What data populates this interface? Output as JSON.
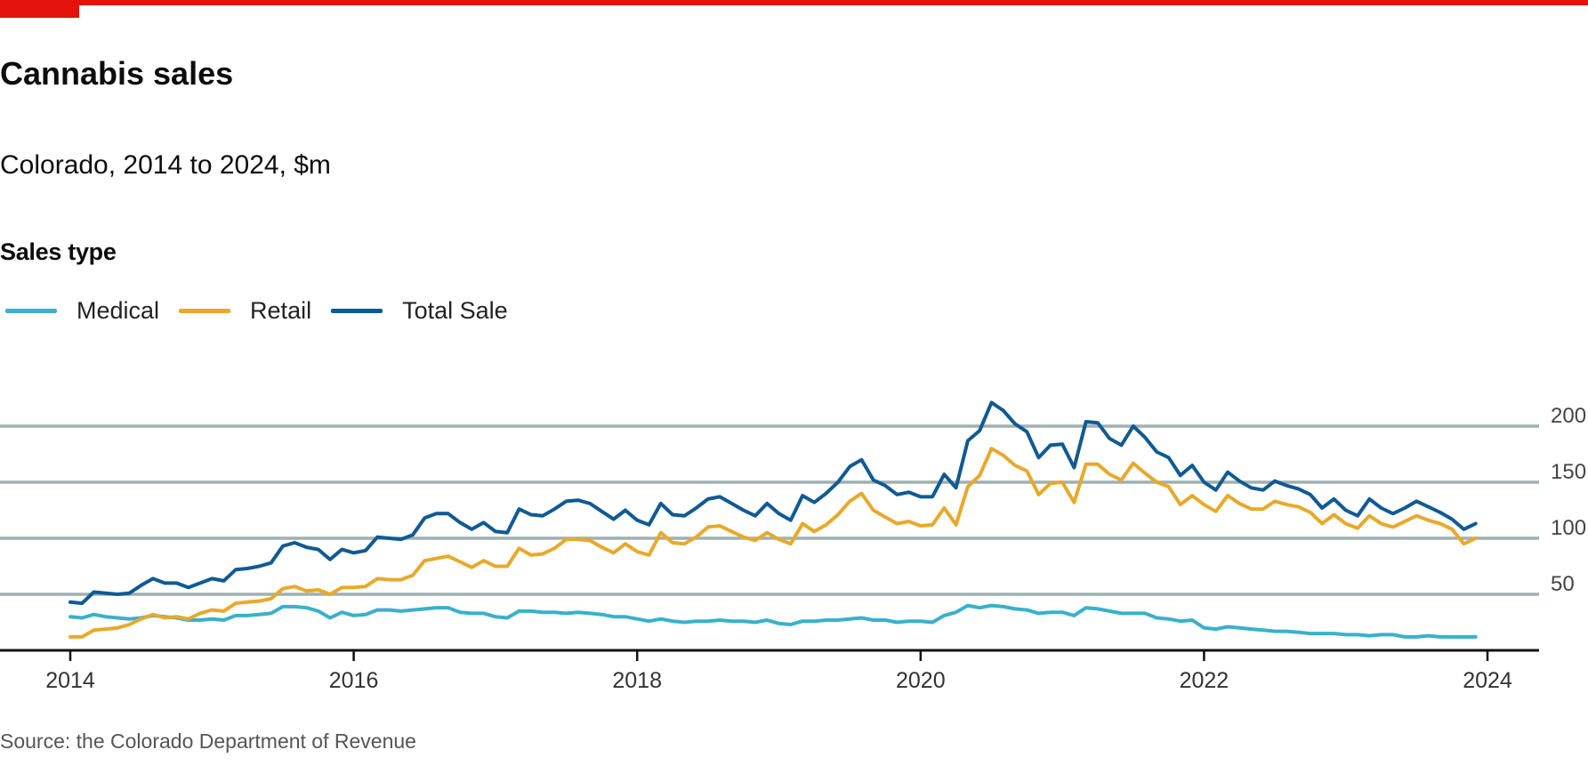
{
  "header": {
    "title": "Cannabis sales",
    "subtitle": "Colorado, 2014 to 2024, $m"
  },
  "legend": {
    "title": "Sales type",
    "items": [
      {
        "label": "Medical",
        "color": "#3ab0cc"
      },
      {
        "label": "Retail",
        "color": "#e8a92a"
      },
      {
        "label": "Total Sale",
        "color": "#0f5a94"
      }
    ]
  },
  "source": "Source: the Colorado Department of Revenue",
  "colors": {
    "brand_red": "#e3120b",
    "grid": "#9fb0b0",
    "axis": "#111111"
  },
  "chart_data": {
    "type": "line",
    "title": "Cannabis sales",
    "subtitle": "Colorado, 2014 to 2024, $m",
    "x_type": "monthly dates",
    "x_start": "2014-01",
    "x_end": "2023-12",
    "xlim": [
      "2014-01",
      "2024-01"
    ],
    "x_ticks": [
      "2014",
      "2016",
      "2018",
      "2020",
      "2022",
      "2024"
    ],
    "ylim": [
      0,
      210
    ],
    "y_ticks": [
      50,
      100,
      150,
      200
    ],
    "y_axis_side": "right",
    "grid": "horizontal",
    "legend_position": "top-left",
    "series": [
      {
        "name": "Medical",
        "color": "#3ab0cc",
        "values": [
          30,
          29,
          32,
          30,
          29,
          28,
          29,
          31,
          30,
          29,
          27,
          27,
          28,
          27,
          31,
          31,
          32,
          33,
          39,
          39,
          38,
          35,
          29,
          34,
          31,
          32,
          36,
          36,
          35,
          36,
          37,
          38,
          38,
          34,
          33,
          33,
          30,
          29,
          35,
          35,
          34,
          34,
          33,
          34,
          33,
          32,
          30,
          30,
          28,
          26,
          28,
          26,
          25,
          26,
          26,
          27,
          26,
          26,
          25,
          27,
          24,
          23,
          26,
          26,
          27,
          27,
          28,
          29,
          27,
          27,
          25,
          26,
          26,
          25,
          31,
          34,
          40,
          38,
          40,
          39,
          37,
          36,
          33,
          34,
          34,
          31,
          38,
          37,
          35,
          33,
          33,
          33,
          29,
          28,
          26,
          27,
          20,
          19,
          21,
          20,
          19,
          18,
          17,
          17,
          16,
          15,
          15,
          15,
          14,
          14,
          13,
          14,
          14,
          12,
          12,
          13,
          12,
          12,
          12,
          12
        ]
      },
      {
        "name": "Retail",
        "color": "#e8a92a",
        "values": [
          12,
          12,
          18,
          19,
          20,
          23,
          28,
          32,
          29,
          30,
          28,
          33,
          36,
          35,
          42,
          43,
          44,
          46,
          55,
          57,
          53,
          54,
          50,
          56,
          56,
          57,
          64,
          63,
          63,
          67,
          80,
          82,
          84,
          79,
          74,
          80,
          75,
          75,
          91,
          85,
          86,
          91,
          99,
          99,
          98,
          92,
          87,
          95,
          88,
          85,
          105,
          96,
          95,
          101,
          110,
          111,
          106,
          101,
          98,
          105,
          99,
          95,
          113,
          106,
          112,
          121,
          133,
          140,
          125,
          119,
          113,
          115,
          111,
          112,
          127,
          112,
          146,
          156,
          180,
          174,
          165,
          160,
          139,
          149,
          150,
          132,
          166,
          166,
          157,
          152,
          167,
          158,
          150,
          146,
          130,
          138,
          130,
          124,
          138,
          131,
          126,
          126,
          133,
          130,
          128,
          123,
          113,
          121,
          113,
          109,
          120,
          113,
          110,
          115,
          120,
          116,
          113,
          108,
          95,
          100
        ]
      },
      {
        "name": "Total Sale",
        "color": "#0f5a94",
        "values": [
          43,
          42,
          52,
          51,
          50,
          51,
          58,
          64,
          60,
          60,
          56,
          60,
          64,
          62,
          72,
          73,
          75,
          78,
          93,
          96,
          92,
          90,
          81,
          90,
          87,
          89,
          101,
          100,
          99,
          103,
          118,
          122,
          122,
          114,
          108,
          114,
          106,
          105,
          126,
          121,
          120,
          126,
          133,
          134,
          131,
          124,
          117,
          125,
          116,
          112,
          131,
          121,
          120,
          127,
          135,
          137,
          131,
          125,
          120,
          131,
          122,
          116,
          138,
          132,
          140,
          150,
          164,
          170,
          152,
          147,
          139,
          141,
          137,
          137,
          157,
          145,
          187,
          196,
          221,
          214,
          202,
          195,
          172,
          183,
          184,
          163,
          204,
          203,
          189,
          183,
          200,
          190,
          177,
          172,
          156,
          165,
          150,
          143,
          159,
          151,
          145,
          143,
          151,
          147,
          144,
          139,
          127,
          135,
          125,
          120,
          135,
          127,
          122,
          127,
          133,
          128,
          123,
          117,
          108,
          113
        ]
      }
    ]
  }
}
